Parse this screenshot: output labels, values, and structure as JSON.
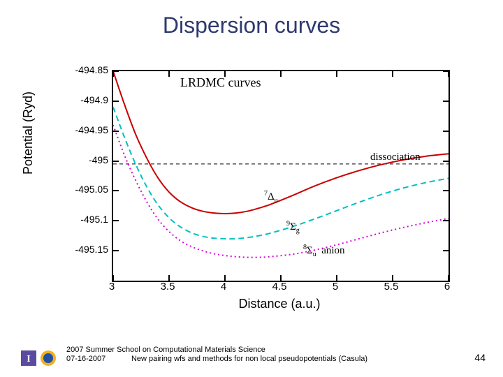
{
  "title": "Dispersion curves",
  "chart": {
    "chart_title": "LRDMC curves",
    "ylabel": "Potential (Ryd)",
    "xlabel": "Distance (a.u.)",
    "xlim": [
      3,
      6
    ],
    "ylim": [
      -495.2,
      -494.85
    ],
    "xticks": [
      3,
      3.5,
      4,
      4.5,
      5,
      5.5,
      6
    ],
    "yticks": [
      -494.85,
      -494.9,
      -494.95,
      -495,
      -495.05,
      -495.1,
      -495.15
    ],
    "dissociation": {
      "text": "dissociation",
      "y": -495.005
    },
    "series": [
      {
        "name": "7Delta_u",
        "label_html": "<sup>7</sup>Δ<sub>u</sub>",
        "label_pos": {
          "x": 4.35,
          "y": -495.058
        },
        "color": "#c80000",
        "dash": "none",
        "width": 2,
        "data": [
          [
            3.0,
            -494.85
          ],
          [
            3.1,
            -494.905
          ],
          [
            3.2,
            -494.955
          ],
          [
            3.3,
            -494.995
          ],
          [
            3.4,
            -495.028
          ],
          [
            3.5,
            -495.052
          ],
          [
            3.6,
            -495.068
          ],
          [
            3.7,
            -495.078
          ],
          [
            3.8,
            -495.084
          ],
          [
            3.9,
            -495.087
          ],
          [
            4.0,
            -495.088
          ],
          [
            4.1,
            -495.087
          ],
          [
            4.2,
            -495.084
          ],
          [
            4.3,
            -495.079
          ],
          [
            4.4,
            -495.073
          ],
          [
            4.6,
            -495.058
          ],
          [
            4.8,
            -495.042
          ],
          [
            5.0,
            -495.028
          ],
          [
            5.2,
            -495.016
          ],
          [
            5.4,
            -495.006
          ],
          [
            5.6,
            -494.998
          ],
          [
            5.8,
            -494.992
          ],
          [
            6.0,
            -494.988
          ]
        ]
      },
      {
        "name": "9Sigma_g",
        "label_html": "<sup>9</sup>Σ<sub>g</sub>",
        "label_pos": {
          "x": 4.55,
          "y": -495.108
        },
        "color": "#00c0c0",
        "dash": "8 5",
        "width": 2,
        "data": [
          [
            3.0,
            -494.91
          ],
          [
            3.1,
            -494.96
          ],
          [
            3.2,
            -495.005
          ],
          [
            3.3,
            -495.043
          ],
          [
            3.4,
            -495.073
          ],
          [
            3.5,
            -495.095
          ],
          [
            3.6,
            -495.11
          ],
          [
            3.7,
            -495.12
          ],
          [
            3.8,
            -495.126
          ],
          [
            3.9,
            -495.129
          ],
          [
            4.0,
            -495.13
          ],
          [
            4.1,
            -495.13
          ],
          [
            4.2,
            -495.128
          ],
          [
            4.3,
            -495.125
          ],
          [
            4.4,
            -495.121
          ],
          [
            4.6,
            -495.11
          ],
          [
            4.8,
            -495.097
          ],
          [
            5.0,
            -495.083
          ],
          [
            5.2,
            -495.069
          ],
          [
            5.4,
            -495.056
          ],
          [
            5.6,
            -495.045
          ],
          [
            5.8,
            -495.036
          ],
          [
            6.0,
            -495.029
          ]
        ]
      },
      {
        "name": "8Sigma_u_anion",
        "label_html": "<sup>8</sup>Σ<sub>u</sub>&nbsp; anion",
        "label_pos": {
          "x": 4.7,
          "y": -495.148
        },
        "color": "#d800d8",
        "dash": "2 4",
        "width": 2,
        "data": [
          [
            3.0,
            -494.94
          ],
          [
            3.1,
            -494.99
          ],
          [
            3.2,
            -495.032
          ],
          [
            3.3,
            -495.068
          ],
          [
            3.4,
            -495.097
          ],
          [
            3.5,
            -495.118
          ],
          [
            3.6,
            -495.133
          ],
          [
            3.7,
            -495.143
          ],
          [
            3.8,
            -495.15
          ],
          [
            3.9,
            -495.155
          ],
          [
            4.0,
            -495.158
          ],
          [
            4.1,
            -495.16
          ],
          [
            4.2,
            -495.161
          ],
          [
            4.3,
            -495.161
          ],
          [
            4.4,
            -495.16
          ],
          [
            4.6,
            -495.156
          ],
          [
            4.8,
            -495.149
          ],
          [
            5.0,
            -495.14
          ],
          [
            5.2,
            -495.13
          ],
          [
            5.4,
            -495.12
          ],
          [
            5.6,
            -495.111
          ],
          [
            5.8,
            -495.103
          ],
          [
            6.0,
            -495.096
          ]
        ]
      }
    ]
  },
  "footer": {
    "line1": "2007 Summer School on Computational Materials Science",
    "line2": "07-16-2007            New pairing wfs and methods for non local pseudopotentials (Casula)"
  },
  "page_number": "44",
  "footer_icons": {
    "icon1": {
      "bg": "#5a4aa0",
      "fg": "#ffffff",
      "letter": "I"
    },
    "icon2": {
      "bg1": "#f0b020",
      "bg2": "#2050a0"
    }
  },
  "colors": {
    "title": "#2e3a6f",
    "axis": "#000000",
    "background": "#ffffff"
  }
}
